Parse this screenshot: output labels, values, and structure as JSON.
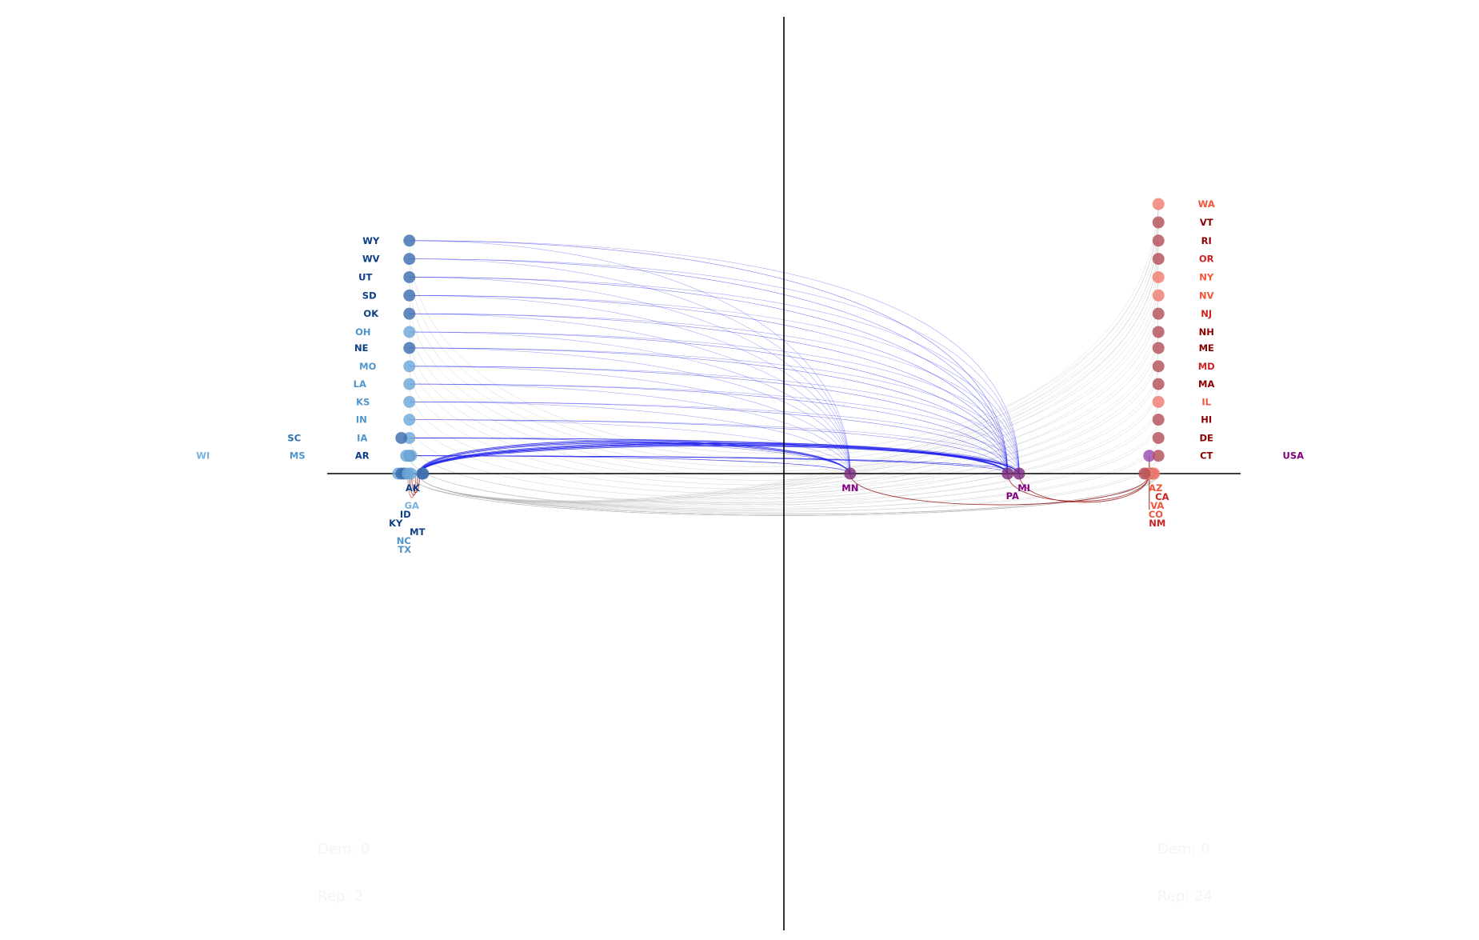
{
  "chart_data": {
    "type": "scatter",
    "title": "",
    "xlabel": "",
    "ylabel": "",
    "xlim": [
      -1.0,
      1.0
    ],
    "ylim": [
      -1.0,
      1.0
    ],
    "axes_lines": true,
    "grid": false,
    "legend": "none",
    "tallies": {
      "left": {
        "dem": "Dem: 0",
        "rep": "Rep: 2"
      },
      "right": {
        "dem": "Dem: 0",
        "rep": "Rep: 24"
      }
    },
    "states": [
      {
        "name": "WY",
        "x": -0.82,
        "y": 0.51,
        "side": "rep",
        "shade": "dark"
      },
      {
        "name": "WV",
        "x": -0.82,
        "y": 0.47,
        "side": "rep",
        "shade": "dark"
      },
      {
        "name": "UT",
        "x": -0.82,
        "y": 0.43,
        "side": "rep",
        "shade": "dark"
      },
      {
        "name": "SD",
        "x": -0.82,
        "y": 0.39,
        "side": "rep",
        "shade": "dark"
      },
      {
        "name": "OK",
        "x": -0.82,
        "y": 0.35,
        "side": "rep",
        "shade": "dark"
      },
      {
        "name": "OH",
        "x": -0.82,
        "y": 0.31,
        "side": "rep",
        "shade": "light"
      },
      {
        "name": "NE",
        "x": -0.82,
        "y": 0.275,
        "side": "rep",
        "shade": "dark"
      },
      {
        "name": "MO",
        "x": -0.82,
        "y": 0.235,
        "side": "rep",
        "shade": "light"
      },
      {
        "name": "LA",
        "x": -0.82,
        "y": 0.196,
        "side": "rep",
        "shade": "light"
      },
      {
        "name": "KS",
        "x": -0.82,
        "y": 0.157,
        "side": "rep",
        "shade": "light"
      },
      {
        "name": "IN",
        "x": -0.82,
        "y": 0.118,
        "side": "rep",
        "shade": "light"
      },
      {
        "name": "IA",
        "x": -0.82,
        "y": 0.078,
        "side": "rep",
        "shade": "light"
      },
      {
        "name": "SC",
        "x": -0.82,
        "y": 0.078,
        "side": "rep",
        "shade": "mid"
      },
      {
        "name": "AR",
        "x": -0.82,
        "y": 0.039,
        "side": "rep",
        "shade": "dark"
      },
      {
        "name": "MS",
        "x": -0.82,
        "y": 0.039,
        "side": "rep",
        "shade": "light"
      },
      {
        "name": "WI",
        "x": -0.82,
        "y": 0.039,
        "side": "rep",
        "shade": "pale"
      },
      {
        "name": "AK",
        "x": -0.79,
        "y": 0.0,
        "side": "rep",
        "shade": "dark"
      },
      {
        "name": "GA",
        "x": -0.82,
        "y": 0.0,
        "side": "rep",
        "shade": "pale"
      },
      {
        "name": "ID",
        "x": -0.82,
        "y": 0.0,
        "side": "rep",
        "shade": "dark"
      },
      {
        "name": "KY",
        "x": -0.82,
        "y": 0.0,
        "side": "rep",
        "shade": "dark"
      },
      {
        "name": "MT",
        "x": -0.82,
        "y": 0.0,
        "side": "rep",
        "shade": "dark"
      },
      {
        "name": "NC",
        "x": -0.82,
        "y": 0.0,
        "side": "rep",
        "shade": "light"
      },
      {
        "name": "TX",
        "x": -0.82,
        "y": 0.0,
        "side": "rep",
        "shade": "light"
      },
      {
        "name": "MN",
        "x": 0.145,
        "y": 0.0,
        "side": "swing",
        "shade": "mid"
      },
      {
        "name": "PA",
        "x": 0.49,
        "y": 0.0,
        "side": "swing",
        "shade": "mid"
      },
      {
        "name": "MI",
        "x": 0.515,
        "y": 0.0,
        "side": "swing",
        "shade": "mid"
      },
      {
        "name": "USA",
        "x": 0.8,
        "y": 0.039,
        "side": "swing",
        "shade": "mid"
      },
      {
        "name": "WA",
        "x": 0.82,
        "y": 0.59,
        "side": "dem",
        "shade": "light"
      },
      {
        "name": "VT",
        "x": 0.82,
        "y": 0.55,
        "side": "dem",
        "shade": "dark"
      },
      {
        "name": "RI",
        "x": 0.82,
        "y": 0.51,
        "side": "dem",
        "shade": "dark"
      },
      {
        "name": "OR",
        "x": 0.82,
        "y": 0.47,
        "side": "dem",
        "shade": "mid"
      },
      {
        "name": "NY",
        "x": 0.82,
        "y": 0.43,
        "side": "dem",
        "shade": "light"
      },
      {
        "name": "NV",
        "x": 0.82,
        "y": 0.39,
        "side": "dem",
        "shade": "light"
      },
      {
        "name": "NJ",
        "x": 0.82,
        "y": 0.35,
        "side": "dem",
        "shade": "mid"
      },
      {
        "name": "NH",
        "x": 0.82,
        "y": 0.31,
        "side": "dem",
        "shade": "dark"
      },
      {
        "name": "ME",
        "x": 0.82,
        "y": 0.275,
        "side": "dem",
        "shade": "dark"
      },
      {
        "name": "MD",
        "x": 0.82,
        "y": 0.235,
        "side": "dem",
        "shade": "mid"
      },
      {
        "name": "MA",
        "x": 0.82,
        "y": 0.196,
        "side": "dem",
        "shade": "dark"
      },
      {
        "name": "IL",
        "x": 0.82,
        "y": 0.157,
        "side": "dem",
        "shade": "light"
      },
      {
        "name": "HI",
        "x": 0.82,
        "y": 0.118,
        "side": "dem",
        "shade": "dark"
      },
      {
        "name": "DE",
        "x": 0.82,
        "y": 0.078,
        "side": "dem",
        "shade": "dark"
      },
      {
        "name": "CT",
        "x": 0.82,
        "y": 0.039,
        "side": "dem",
        "shade": "dark"
      },
      {
        "name": "AZ",
        "x": 0.8,
        "y": 0.0,
        "side": "dem",
        "shade": "light"
      },
      {
        "name": "CA",
        "x": 0.8,
        "y": 0.0,
        "side": "dem",
        "shade": "mid"
      },
      {
        "name": "VA",
        "x": 0.8,
        "y": 0.0,
        "side": "dem",
        "shade": "light"
      },
      {
        "name": "CO",
        "x": 0.8,
        "y": 0.0,
        "side": "dem",
        "shade": "light"
      },
      {
        "name": "NM",
        "x": 0.8,
        "y": 0.0,
        "side": "dem",
        "shade": "mid"
      }
    ],
    "colors": {
      "rep_dark": "#0d3f86",
      "rep_mid": "#2a70b0",
      "rep_light": "#4f95cc",
      "rep_pale": "#7bb2de",
      "dem_dark": "#8b0000",
      "dem_mid": "#cc2222",
      "dem_light": "#f2543a",
      "swing": "#800080",
      "rep_marker": "#3f6fb0",
      "rep_marker_light": "#6ea7d8",
      "dem_marker": "#b5505a",
      "dem_marker_light": "#ef7c70",
      "swing_marker": "#7b2d7e",
      "usa_marker": "#9a4db3",
      "flow_blue": "#1a1aee",
      "flow_red": "#9b1b1b",
      "flow_grey": "#b0b0b0",
      "axis": "#000000"
    }
  }
}
